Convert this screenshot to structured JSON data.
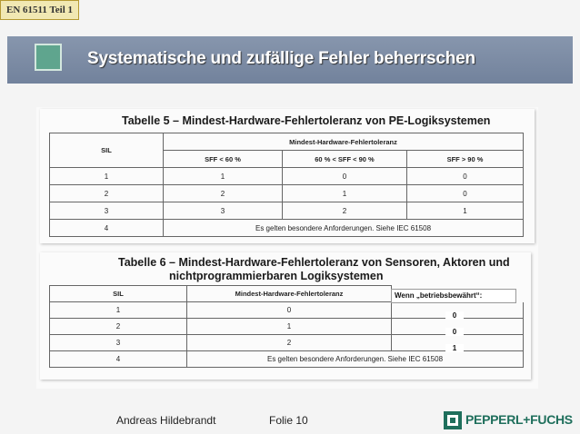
{
  "section_tag": "EN 61511 Teil 1",
  "title": "Systematische und zufällige Fehler beherrschen",
  "table5": {
    "caption": "Tabelle 5 – Mindest-Hardware-Fehlertoleranz von PE-Logiksystemen",
    "col_sil": "SIL",
    "col_group": "Mindest-Hardware-Fehlertoleranz",
    "sub_headers": [
      "SFF < 60 %",
      "60 % < SFF < 90 %",
      "SFF > 90 %"
    ],
    "rows": [
      {
        "sil": "1",
        "v": [
          "1",
          "0",
          "0"
        ]
      },
      {
        "sil": "2",
        "v": [
          "2",
          "1",
          "0"
        ]
      },
      {
        "sil": "3",
        "v": [
          "3",
          "2",
          "1"
        ]
      }
    ],
    "last_row": {
      "sil": "4",
      "text": "Es gelten besondere Anforderungen. Siehe IEC 61508"
    }
  },
  "table6": {
    "caption_line1": "Tabelle 6 – Mindest-Hardware-Fehlertoleranz von Sensoren, Aktoren und",
    "caption_line2": "nichtprogrammierbaren Logiksystemen",
    "col_sil": "SIL",
    "col_mhft": "Mindest-Hardware-Fehlertoleranz",
    "rows": [
      {
        "sil": "1",
        "v": "0"
      },
      {
        "sil": "2",
        "v": "1"
      },
      {
        "sil": "3",
        "v": "2"
      }
    ],
    "last_row": {
      "sil": "4",
      "text": "Es gelten besondere Anforderungen. Siehe IEC 61508"
    }
  },
  "wenn_label": "Wenn „betriebsbewährt“:",
  "wenn_values": [
    "0",
    "0",
    "1"
  ],
  "footer": {
    "author": "Andreas Hildebrandt",
    "slide": "Folie 10"
  },
  "logo_text": "PEPPERL+FUCHS",
  "colors": {
    "header": "#7e8da5",
    "accent_square": "#5fa58e",
    "logo": "#1f6f5c",
    "tag_bg": "#f1e8b3"
  }
}
